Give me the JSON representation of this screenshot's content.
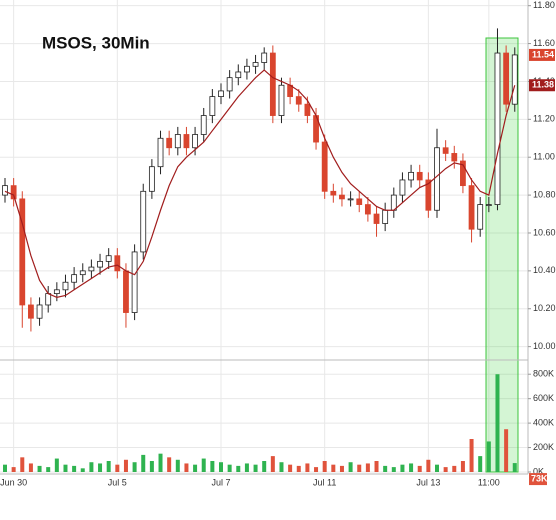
{
  "chart_data": {
    "type": "candlestick",
    "title": "MSOS, 30Min",
    "categories": [
      null,
      "Jun 30",
      null,
      null,
      null,
      null,
      null,
      null,
      null,
      null,
      null,
      null,
      null,
      "Jul 5",
      null,
      null,
      null,
      null,
      null,
      null,
      null,
      null,
      null,
      null,
      null,
      "Jul 7",
      null,
      null,
      null,
      null,
      null,
      null,
      null,
      null,
      null,
      null,
      null,
      "Jul 11",
      null,
      null,
      null,
      null,
      null,
      null,
      null,
      null,
      null,
      null,
      null,
      "Jul 13",
      null,
      null,
      null,
      null,
      null,
      null,
      "11:00",
      null,
      null,
      null
    ],
    "open": [
      10.8,
      10.85,
      10.78,
      10.22,
      10.15,
      10.22,
      10.28,
      10.3,
      10.34,
      10.38,
      10.4,
      10.42,
      10.45,
      10.48,
      10.4,
      10.18,
      10.5,
      10.82,
      10.95,
      11.1,
      11.05,
      11.12,
      11.05,
      11.12,
      11.22,
      11.32,
      11.35,
      11.42,
      11.45,
      11.48,
      11.5,
      11.55,
      11.22,
      11.38,
      11.32,
      11.28,
      11.22,
      11.08,
      10.82,
      10.8,
      10.78,
      10.78,
      10.75,
      10.7,
      10.65,
      10.72,
      10.8,
      10.88,
      10.92,
      10.88,
      10.72,
      11.05,
      11.02,
      10.98,
      10.85,
      10.62,
      10.75,
      10.75,
      11.55,
      11.28
    ],
    "high": [
      10.89,
      10.89,
      10.82,
      10.26,
      10.26,
      10.32,
      10.34,
      10.38,
      10.42,
      10.44,
      10.46,
      10.49,
      10.52,
      10.52,
      10.44,
      10.54,
      10.86,
      10.99,
      11.14,
      11.14,
      11.16,
      11.16,
      11.16,
      11.26,
      11.36,
      11.39,
      11.46,
      11.49,
      11.52,
      11.54,
      11.58,
      11.59,
      11.42,
      11.42,
      11.36,
      11.32,
      11.26,
      11.12,
      10.86,
      10.84,
      10.82,
      10.82,
      10.79,
      10.74,
      10.76,
      10.84,
      10.92,
      10.96,
      10.96,
      10.92,
      11.15,
      11.09,
      11.06,
      11.02,
      10.89,
      10.79,
      10.79,
      11.68,
      11.59,
      11.58
    ],
    "low": [
      10.76,
      10.74,
      10.1,
      10.08,
      10.11,
      10.18,
      10.24,
      10.26,
      10.3,
      10.34,
      10.36,
      10.38,
      10.41,
      10.36,
      10.1,
      10.14,
      10.46,
      10.78,
      10.91,
      11.01,
      11.01,
      11.01,
      11.01,
      11.08,
      11.18,
      11.28,
      11.31,
      11.38,
      11.41,
      11.44,
      11.46,
      11.18,
      11.18,
      11.28,
      11.24,
      11.18,
      11.04,
      10.78,
      10.76,
      10.74,
      10.74,
      10.71,
      10.66,
      10.58,
      10.61,
      10.68,
      10.76,
      10.84,
      10.84,
      10.68,
      10.68,
      10.98,
      10.94,
      10.81,
      10.55,
      10.58,
      10.71,
      10.72,
      11.24,
      11.24
    ],
    "close": [
      10.85,
      10.78,
      10.22,
      10.15,
      10.22,
      10.28,
      10.3,
      10.34,
      10.38,
      10.4,
      10.42,
      10.45,
      10.48,
      10.4,
      10.18,
      10.5,
      10.82,
      10.95,
      11.1,
      11.05,
      11.12,
      11.05,
      11.12,
      11.22,
      11.32,
      11.35,
      11.42,
      11.45,
      11.48,
      11.5,
      11.55,
      11.22,
      11.38,
      11.32,
      11.28,
      11.22,
      11.08,
      10.82,
      10.8,
      10.78,
      10.78,
      10.75,
      10.7,
      10.65,
      10.72,
      10.8,
      10.88,
      10.92,
      10.88,
      10.72,
      11.05,
      11.02,
      10.98,
      10.85,
      10.62,
      10.75,
      10.75,
      11.55,
      11.28,
      11.54
    ],
    "ma": {
      "color": "#a11d1d",
      "values": [
        10.82,
        10.8,
        10.65,
        10.48,
        10.35,
        10.28,
        10.26,
        10.27,
        10.3,
        10.33,
        10.36,
        10.39,
        10.42,
        10.43,
        10.4,
        10.38,
        10.45,
        10.58,
        10.72,
        10.85,
        10.95,
        11.0,
        11.04,
        11.08,
        11.14,
        11.2,
        11.26,
        11.32,
        11.37,
        11.42,
        11.46,
        11.42,
        11.4,
        11.38,
        11.35,
        11.3,
        11.22,
        11.1,
        11.0,
        10.92,
        10.86,
        10.82,
        10.78,
        10.74,
        10.72,
        10.72,
        10.76,
        10.8,
        10.84,
        10.86,
        10.9,
        10.94,
        10.97,
        10.96,
        10.88,
        10.82,
        10.8,
        11.02,
        11.22,
        11.38
      ]
    },
    "volume": [
      60000,
      40000,
      120000,
      70000,
      50000,
      40000,
      110000,
      60000,
      50000,
      30000,
      80000,
      70000,
      90000,
      60000,
      100000,
      80000,
      140000,
      90000,
      150000,
      120000,
      100000,
      70000,
      60000,
      110000,
      90000,
      80000,
      60000,
      50000,
      70000,
      60000,
      90000,
      130000,
      80000,
      60000,
      50000,
      70000,
      40000,
      90000,
      60000,
      50000,
      80000,
      60000,
      70000,
      90000,
      50000,
      40000,
      60000,
      70000,
      50000,
      100000,
      60000,
      40000,
      50000,
      90000,
      270000,
      130000,
      250000,
      800000,
      350000,
      73000
    ],
    "last_volume_label": "73K",
    "up_color": "#222222",
    "down_color": "#d9452e",
    "volume_up_color": "#2fb350",
    "volume_down_color": "#e0533c",
    "ylim": [
      9.94,
      11.83
    ],
    "yticks": [
      {
        "value": 10.0,
        "label": "10.00"
      },
      {
        "value": 10.2,
        "label": "10.20"
      },
      {
        "value": 10.4,
        "label": "10.40"
      },
      {
        "value": 10.6,
        "label": "10.60"
      },
      {
        "value": 10.8,
        "label": "10.80"
      },
      {
        "value": 11.0,
        "label": "11.00"
      },
      {
        "value": 11.2,
        "label": "11.20"
      },
      {
        "value": 11.4,
        "label": "11.40"
      },
      {
        "value": 11.6,
        "label": "11.60"
      },
      {
        "value": 11.8,
        "label": "11.80"
      }
    ],
    "y2lim": [
      0,
      900000
    ],
    "y2ticks": [
      {
        "value": 0,
        "label": "0K"
      },
      {
        "value": 200000,
        "label": "200K"
      },
      {
        "value": 400000,
        "label": "400K"
      },
      {
        "value": 600000,
        "label": "600K"
      },
      {
        "value": 800000,
        "label": "800K"
      }
    ],
    "grid": true
  }
}
